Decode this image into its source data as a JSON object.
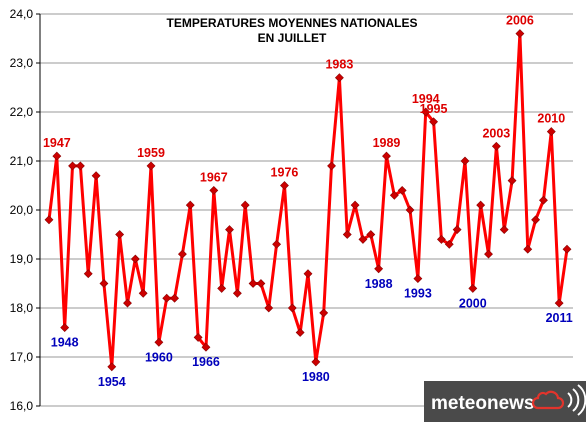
{
  "chart_data": {
    "type": "line",
    "title": [
      "TEMPERATURES MOYENNES NATIONALES",
      "EN JUILLET"
    ],
    "xlabel": "",
    "ylabel": "",
    "ylim": [
      16.0,
      24.0
    ],
    "yticks": [
      "16,0",
      "17,0",
      "18,0",
      "19,0",
      "20,0",
      "21,0",
      "22,0",
      "23,0",
      "24,0"
    ],
    "grid": "horizontal",
    "legend": "none",
    "x": [
      1946,
      1947,
      1948,
      1949,
      1950,
      1951,
      1952,
      1953,
      1954,
      1955,
      1956,
      1957,
      1958,
      1959,
      1960,
      1961,
      1962,
      1963,
      1964,
      1965,
      1966,
      1967,
      1968,
      1969,
      1970,
      1971,
      1972,
      1973,
      1974,
      1975,
      1976,
      1977,
      1978,
      1979,
      1980,
      1981,
      1982,
      1983,
      1984,
      1985,
      1986,
      1987,
      1988,
      1989,
      1990,
      1991,
      1992,
      1993,
      1994,
      1995,
      1996,
      1997,
      1998,
      1999,
      2000,
      2001,
      2002,
      2003,
      2004,
      2005,
      2006,
      2007,
      2008,
      2009,
      2010,
      2011,
      2012
    ],
    "series": [
      {
        "values": [
          19.8,
          21.1,
          17.6,
          20.9,
          20.9,
          18.7,
          20.7,
          18.5,
          16.8,
          19.5,
          18.1,
          19.0,
          18.3,
          20.9,
          17.3,
          18.2,
          18.2,
          19.1,
          20.1,
          17.4,
          17.2,
          20.4,
          18.4,
          19.6,
          18.3,
          20.1,
          18.5,
          18.5,
          18.0,
          19.3,
          20.5,
          18.0,
          17.5,
          18.7,
          16.9,
          17.9,
          20.9,
          22.7,
          19.5,
          20.1,
          19.4,
          19.5,
          18.8,
          21.1,
          20.3,
          20.4,
          20.0,
          18.6,
          22.0,
          21.8,
          19.4,
          19.3,
          19.6,
          21.0,
          18.4,
          20.1,
          19.1,
          21.3,
          19.6,
          20.6,
          23.6,
          19.2,
          19.8,
          20.2,
          21.6,
          18.1,
          19.2
        ]
      }
    ],
    "annotations": [
      {
        "year": 1947,
        "label": "1947",
        "kind": "high"
      },
      {
        "year": 1948,
        "label": "1948",
        "kind": "low"
      },
      {
        "year": 1954,
        "label": "1954",
        "kind": "low"
      },
      {
        "year": 1959,
        "label": "1959",
        "kind": "high"
      },
      {
        "year": 1960,
        "label": "1960",
        "kind": "low"
      },
      {
        "year": 1966,
        "label": "1966",
        "kind": "low"
      },
      {
        "year": 1967,
        "label": "1967",
        "kind": "high"
      },
      {
        "year": 1976,
        "label": "1976",
        "kind": "high"
      },
      {
        "year": 1980,
        "label": "1980",
        "kind": "low"
      },
      {
        "year": 1983,
        "label": "1983",
        "kind": "high"
      },
      {
        "year": 1988,
        "label": "1988",
        "kind": "low"
      },
      {
        "year": 1989,
        "label": "1989",
        "kind": "high"
      },
      {
        "year": 1993,
        "label": "1993",
        "kind": "low"
      },
      {
        "year": 1994,
        "label": "1994",
        "kind": "high"
      },
      {
        "year": 1995,
        "label": "1995",
        "kind": "high"
      },
      {
        "year": 2000,
        "label": "2000",
        "kind": "low"
      },
      {
        "year": 2003,
        "label": "2003",
        "kind": "high"
      },
      {
        "year": 2006,
        "label": "2006",
        "kind": "high"
      },
      {
        "year": 2010,
        "label": "2010",
        "kind": "high"
      },
      {
        "year": 2011,
        "label": "2011",
        "kind": "low"
      }
    ]
  },
  "colors": {
    "line": "#ff0000",
    "marker": "#cc0000",
    "high_label": "#dd0000",
    "low_label": "#0000bb",
    "grid": "#999999",
    "logo_bg": "#4a4a4a"
  },
  "logo": {
    "text": "meteonews",
    "icons": [
      "cloud-icon",
      "signal-icon"
    ]
  }
}
